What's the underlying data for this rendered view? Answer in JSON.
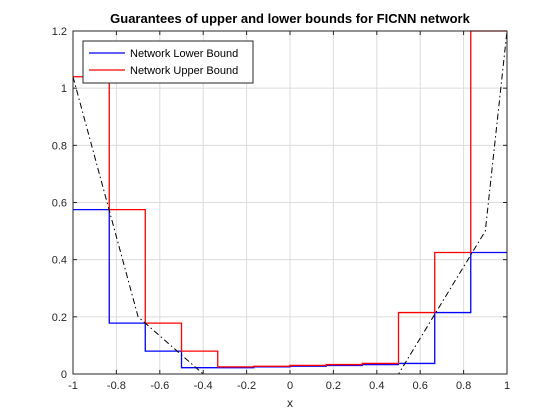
{
  "chart_data": {
    "type": "line",
    "title": "Guarantees of upper and lower bounds for FICNN network",
    "xlabel": "x",
    "ylabel": "",
    "xlim": [
      -1,
      1
    ],
    "ylim": [
      0,
      1.2
    ],
    "xticks": [
      -1,
      -0.8,
      -0.6,
      -0.4,
      -0.2,
      0,
      0.2,
      0.4,
      0.6,
      0.8,
      1
    ],
    "yticks": [
      0,
      0.2,
      0.4,
      0.6,
      0.8,
      1,
      1.2
    ],
    "xtick_labels": [
      "-1",
      "-0.8",
      "-0.6",
      "-0.4",
      "-0.2",
      "0",
      "0.2",
      "0.4",
      "0.6",
      "0.8",
      "1"
    ],
    "ytick_labels": [
      "0",
      "0.2",
      "0.4",
      "0.6",
      "0.8",
      "1",
      "1.2"
    ],
    "grid": true,
    "legend_position": "top-left",
    "series": [
      {
        "name": "Network Lower Bound",
        "color": "#0000ff",
        "style": "step",
        "x": [
          -1,
          -0.833,
          -0.833,
          -0.667,
          -0.667,
          -0.5,
          -0.5,
          -0.333,
          -0.333,
          -0.167,
          -0.167,
          0,
          0,
          0.167,
          0.167,
          0.333,
          0.333,
          0.5,
          0.5,
          0.667,
          0.667,
          0.833,
          0.833,
          1
        ],
        "y": [
          0.575,
          0.575,
          0.178,
          0.178,
          0.08,
          0.08,
          0.022,
          0.022,
          0.022,
          0.022,
          0.025,
          0.025,
          0.027,
          0.027,
          0.03,
          0.03,
          0.033,
          0.033,
          0.037,
          0.037,
          0.215,
          0.215,
          0.425,
          0.425
        ]
      },
      {
        "name": "Network Upper Bound",
        "color": "#ff0000",
        "style": "step",
        "x": [
          -1,
          -0.833,
          -0.833,
          -0.667,
          -0.667,
          -0.5,
          -0.5,
          -0.333,
          -0.333,
          -0.167,
          -0.167,
          0,
          0,
          0.167,
          0.167,
          0.333,
          0.333,
          0.5,
          0.5,
          0.667,
          0.667,
          0.833,
          0.833,
          1
        ],
        "y": [
          1.04,
          1.04,
          0.575,
          0.575,
          0.178,
          0.178,
          0.08,
          0.08,
          0.025,
          0.025,
          0.027,
          0.027,
          0.03,
          0.03,
          0.033,
          0.033,
          0.037,
          0.037,
          0.215,
          0.215,
          0.425,
          0.425,
          1.2,
          1.2
        ]
      },
      {
        "color": "#000000",
        "style": "dashdot",
        "x": [
          -1,
          -0.7,
          -0.4,
          -0.2,
          0,
          0.2,
          0.4,
          0.5,
          0.9,
          1
        ],
        "y": [
          1.04,
          0.2,
          0.0,
          0.0,
          0.0,
          0.0,
          0.0,
          0.0,
          0.5,
          1.2
        ]
      }
    ]
  }
}
